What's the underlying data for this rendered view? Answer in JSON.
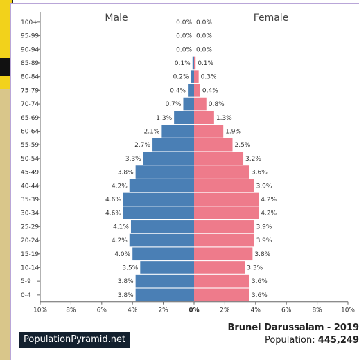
{
  "chart_data": {
    "type": "bar",
    "left_header": "Male",
    "right_header": "Female",
    "categories": [
      "100+",
      "95-99",
      "90-94",
      "85-89",
      "80-84",
      "75-79",
      "70-74",
      "65-69",
      "60-64",
      "55-59",
      "50-54",
      "45-49",
      "40-44",
      "35-39",
      "30-34",
      "25-29",
      "20-24",
      "15-19",
      "10-14",
      "5-9",
      "0-4"
    ],
    "series": [
      {
        "name": "Male",
        "color": "#4a7fb5",
        "values": [
          0.0,
          0.0,
          0.0,
          0.1,
          0.2,
          0.4,
          0.7,
          1.3,
          2.1,
          2.7,
          3.3,
          3.8,
          4.2,
          4.6,
          4.6,
          4.1,
          4.2,
          4.0,
          3.5,
          3.8,
          3.8
        ],
        "labels": [
          "0.0%",
          "0.0%",
          "0.0%",
          "0.1%",
          "0.2%",
          "0.4%",
          "0.7%",
          "1.3%",
          "2.1%",
          "2.7%",
          "3.3%",
          "3.8%",
          "4.2%",
          "4.6%",
          "4.6%",
          "4.1%",
          "4.2%",
          "4.0%",
          "3.5%",
          "3.8%",
          "3.8%"
        ]
      },
      {
        "name": "Female",
        "color": "#ee7b8b",
        "values": [
          0.0,
          0.0,
          0.0,
          0.1,
          0.3,
          0.4,
          0.8,
          1.3,
          1.9,
          2.5,
          3.2,
          3.6,
          3.9,
          4.2,
          4.2,
          3.9,
          3.9,
          3.8,
          3.3,
          3.6,
          3.6
        ],
        "labels": [
          "0.0%",
          "0.0%",
          "0.0%",
          "0.1%",
          "0.3%",
          "0.4%",
          "0.8%",
          "1.3%",
          "1.9%",
          "2.5%",
          "3.2%",
          "3.6%",
          "3.9%",
          "4.2%",
          "4.2%",
          "3.9%",
          "3.9%",
          "3.8%",
          "3.3%",
          "3.6%",
          "3.6%"
        ]
      }
    ],
    "xlim": [
      -10,
      10
    ],
    "x_ticks": [
      -10,
      -8,
      -6,
      -4,
      -2,
      0,
      2,
      4,
      6,
      8,
      10
    ],
    "x_tick_labels": [
      "10%",
      "8%",
      "6%",
      "4%",
      "2%",
      "0%",
      "2%",
      "4%",
      "6%",
      "8%",
      "10%"
    ]
  },
  "footer": {
    "brand": "PopulationPyramid.net",
    "country_year": "Brunei Darussalam - 2019",
    "population_label": "Population: ",
    "population_value": "445,249"
  }
}
